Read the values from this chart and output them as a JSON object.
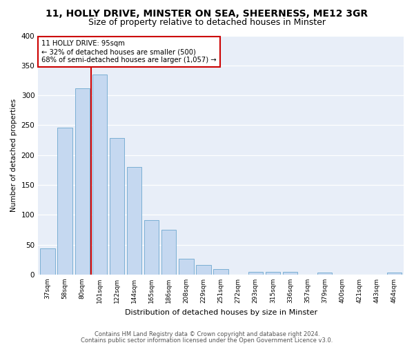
{
  "title": "11, HOLLY DRIVE, MINSTER ON SEA, SHEERNESS, ME12 3GR",
  "subtitle": "Size of property relative to detached houses in Minster",
  "xlabel": "Distribution of detached houses by size in Minster",
  "ylabel": "Number of detached properties",
  "categories": [
    "37sqm",
    "58sqm",
    "80sqm",
    "101sqm",
    "122sqm",
    "144sqm",
    "165sqm",
    "186sqm",
    "208sqm",
    "229sqm",
    "251sqm",
    "272sqm",
    "293sqm",
    "315sqm",
    "336sqm",
    "357sqm",
    "379sqm",
    "400sqm",
    "421sqm",
    "443sqm",
    "464sqm"
  ],
  "values": [
    44,
    246,
    312,
    335,
    228,
    180,
    91,
    75,
    26,
    16,
    9,
    0,
    5,
    5,
    4,
    0,
    3,
    0,
    0,
    0,
    3
  ],
  "bar_color": "#c5d8f0",
  "bar_edge_color": "#7bafd4",
  "vline_color": "#cc0000",
  "box_edge_color": "#cc0000",
  "annotation_title": "11 HOLLY DRIVE: 95sqm",
  "annotation_line1": "← 32% of detached houses are smaller (500)",
  "annotation_line2": "68% of semi-detached houses are larger (1,057) →",
  "footer_line1": "Contains HM Land Registry data © Crown copyright and database right 2024.",
  "footer_line2": "Contains public sector information licensed under the Open Government Licence v3.0.",
  "ylim": [
    0,
    400
  ],
  "yticks": [
    0,
    50,
    100,
    150,
    200,
    250,
    300,
    350,
    400
  ],
  "bg_color": "#e8eef8",
  "fig_color": "#ffffff",
  "title_fontsize": 10,
  "subtitle_fontsize": 9
}
